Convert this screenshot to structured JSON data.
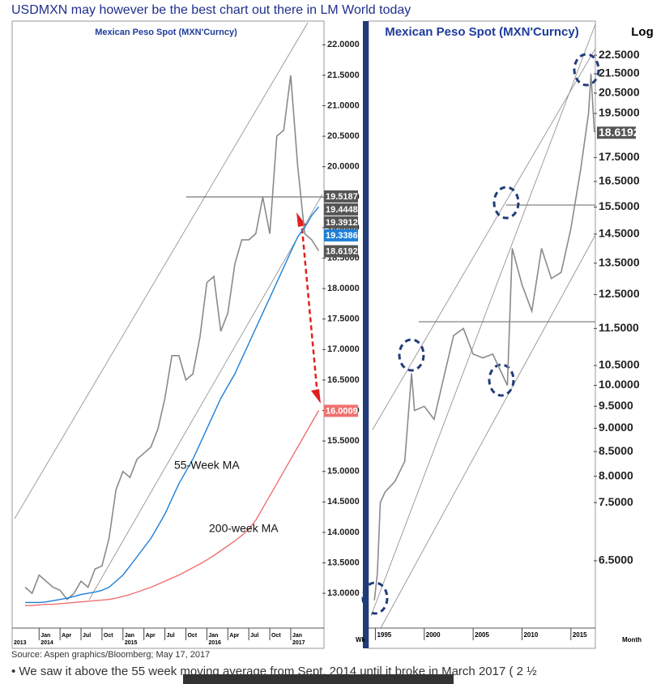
{
  "header": {
    "title": "USDMXN may however be the best chart out there in LM World today"
  },
  "chart_data": [
    {
      "type": "line",
      "title": "Mexican Peso Spot (MXN'Curncy)",
      "categories": [
        null,
        null,
        "Jan",
        null,
        null,
        "Apr",
        null,
        null,
        "Jul",
        null,
        null,
        "Oct",
        null,
        null,
        "Jan",
        null,
        null,
        "Apr",
        null,
        null,
        "Jul",
        null,
        null,
        "Oct",
        null,
        null,
        "Jan",
        null,
        null,
        "Apr",
        null,
        null,
        "Jul",
        null,
        null,
        "Oct",
        null,
        null,
        "Jan",
        null,
        null,
        null,
        null
      ],
      "years": [
        "2013",
        "2014",
        "2015",
        "2016",
        "2017"
      ],
      "series": [
        {
          "color": "#8a8a8a",
          "values": [
            13.1,
            13.0,
            13.3,
            13.2,
            13.1,
            13.05,
            12.9,
            13.0,
            13.2,
            13.1,
            13.4,
            13.45,
            13.9,
            14.7,
            15.0,
            14.9,
            15.2,
            15.3,
            15.4,
            15.7,
            16.2,
            16.9,
            16.9,
            16.5,
            16.6,
            17.2,
            18.1,
            18.2,
            17.3,
            17.6,
            18.4,
            18.8,
            18.8,
            18.9,
            19.5,
            18.9,
            20.5,
            20.6,
            21.5,
            20.0,
            18.9,
            18.8,
            18.62
          ]
        },
        {
          "name": "55-Week MA",
          "color": "#1f7fd6",
          "values": [
            12.85,
            12.85,
            12.85,
            12.86,
            12.88,
            12.9,
            12.92,
            12.95,
            12.98,
            13.0,
            13.02,
            13.05,
            13.1,
            13.2,
            13.3,
            13.45,
            13.6,
            13.75,
            13.9,
            14.1,
            14.3,
            14.55,
            14.8,
            15.0,
            15.2,
            15.45,
            15.7,
            15.95,
            16.2,
            16.4,
            16.6,
            16.85,
            17.1,
            17.35,
            17.6,
            17.85,
            18.1,
            18.35,
            18.6,
            18.85,
            19.0,
            19.2,
            19.34
          ]
        },
        {
          "name": "200-week MA",
          "color": "#f07070",
          "values": [
            12.8,
            12.8,
            12.81,
            12.82,
            12.82,
            12.83,
            12.84,
            12.85,
            12.86,
            12.87,
            12.88,
            12.89,
            12.9,
            12.92,
            12.95,
            12.98,
            13.02,
            13.06,
            13.1,
            13.15,
            13.2,
            13.25,
            13.3,
            13.36,
            13.42,
            13.48,
            13.55,
            13.62,
            13.7,
            13.78,
            13.86,
            13.95,
            14.05,
            14.2,
            14.4,
            14.6,
            14.8,
            15.0,
            15.2,
            15.4,
            15.6,
            15.8,
            16.0
          ]
        }
      ],
      "ylim": [
        12.43,
        22.23
      ],
      "yticks": [
        {
          "value": 13,
          "label": "13.0000"
        },
        {
          "value": 13.5,
          "label": "13.5000"
        },
        {
          "value": 14,
          "label": "14.0000"
        },
        {
          "value": 14.5,
          "label": "14.5000"
        },
        {
          "value": 15,
          "label": "15.0000"
        },
        {
          "value": 15.5,
          "label": "15.5000"
        },
        {
          "value": 16,
          "label": "16.0000"
        },
        {
          "value": 16.5,
          "label": "16.5000"
        },
        {
          "value": 17,
          "label": "17.0000"
        },
        {
          "value": 17.5,
          "label": "17.5000"
        },
        {
          "value": 18,
          "label": "18.0000"
        },
        {
          "value": 18.5,
          "label": "18.5000"
        },
        {
          "value": 19,
          "label": "19.0000"
        },
        {
          "value": 19.5,
          "label": "19.5000"
        },
        {
          "value": 20,
          "label": "20.0000"
        },
        {
          "value": 20.5,
          "label": "20.5000"
        },
        {
          "value": 21,
          "label": "21.0000"
        },
        {
          "value": 21.5,
          "label": "21.5000"
        },
        {
          "value": 22,
          "label": "22.0000"
        }
      ],
      "price_tags": [
        19.5187,
        19.4448,
        19.3912,
        19.3386,
        18.6192,
        16.0009
      ],
      "price_tag_colors": [
        "#555555",
        "#555555",
        "#555555",
        "#1f7fd6",
        "#555555",
        "#f07070"
      ],
      "corner_label": "Wk"
    },
    {
      "type": "line",
      "title": "Mexican Peso Spot (MXN'Curncy)",
      "log_scale": true,
      "scale_label": "Log",
      "corner_label": "Month",
      "x": [
        1994.9,
        1995.2,
        1995.5,
        1996,
        1997,
        1998,
        1998.7,
        1999,
        2000,
        2001,
        2002,
        2003,
        2004,
        2005,
        2006,
        2007,
        2008.5,
        2009,
        2010,
        2011,
        2012,
        2013,
        2014,
        2015,
        2016,
        2016.8,
        2017.05,
        2017.4
      ],
      "series": [
        {
          "color": "#8a8a8a",
          "values": [
            5.9,
            6.3,
            7.5,
            7.7,
            7.9,
            8.3,
            10.3,
            9.4,
            9.5,
            9.2,
            10.2,
            11.3,
            11.5,
            10.8,
            10.7,
            10.8,
            10.0,
            14.0,
            12.8,
            12.0,
            14.0,
            13.0,
            13.2,
            14.7,
            17.0,
            19.5,
            21.5,
            18.62
          ]
        }
      ],
      "xlim": [
        1994.3,
        2017.5
      ],
      "xticks": [
        1995,
        2000,
        2005,
        2010,
        2015
      ],
      "ylim": [
        5.51,
        23.89
      ],
      "yticks": [
        {
          "value": 22.5,
          "label": "22.5000"
        },
        {
          "value": 21.5,
          "label": "21.5000"
        },
        {
          "value": 20.5,
          "label": "20.5000"
        },
        {
          "value": 19.5,
          "label": "19.5000"
        },
        {
          "value": 17.5,
          "label": "17.5000"
        },
        {
          "value": 16.5,
          "label": "16.5000"
        },
        {
          "value": 15.5,
          "label": "15.5000"
        },
        {
          "value": 14.5,
          "label": "14.5000"
        },
        {
          "value": 13.5,
          "label": "13.5000"
        },
        {
          "value": 12.5,
          "label": "12.5000"
        },
        {
          "value": 11.5,
          "label": "11.5000"
        },
        {
          "value": 10.5,
          "label": "10.5000"
        },
        {
          "value": 10,
          "label": "10.0000"
        },
        {
          "value": 9.5,
          "label": "9.5000"
        },
        {
          "value": 9,
          "label": "9.0000"
        },
        {
          "value": 8.5,
          "label": "8.5000"
        },
        {
          "value": 8,
          "label": "8.0000"
        },
        {
          "value": 7.5,
          "label": "7.5000"
        },
        {
          "value": 6.5,
          "label": "6.5000"
        }
      ],
      "price_tags": [
        18.6192
      ],
      "price_tag_colors": [
        "#555555"
      ]
    }
  ],
  "source": "Source: Aspen graphics/Bloomberg; May 17, 2017",
  "bullet": "We saw it above the 55 week moving average from Sept. 2014 until it broke in March 2017 ( 2 ½"
}
